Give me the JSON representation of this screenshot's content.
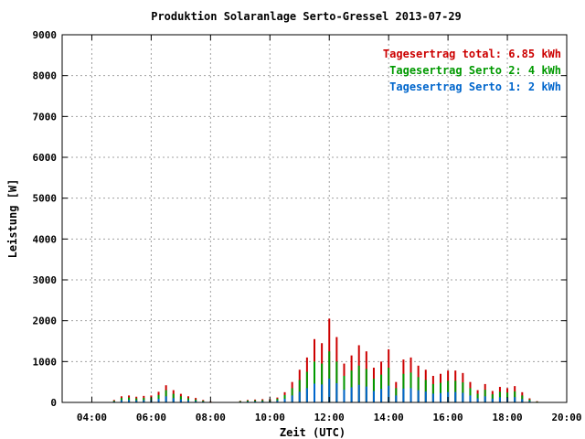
{
  "chart_data": {
    "type": "bar",
    "title": "Produktion Solaranlage Serto-Gressel 2013-07-29",
    "xlabel": "Zeit (UTC)",
    "ylabel": "Leistung [W]",
    "xlim": [
      3.0,
      20.0
    ],
    "ylim": [
      0,
      9000
    ],
    "grid": true,
    "legend_position": "top-right",
    "x_ticks": [
      {
        "v": 4,
        "label": "04:00"
      },
      {
        "v": 6,
        "label": "06:00"
      },
      {
        "v": 8,
        "label": "08:00"
      },
      {
        "v": 10,
        "label": "10:00"
      },
      {
        "v": 12,
        "label": "12:00"
      },
      {
        "v": 14,
        "label": "14:00"
      },
      {
        "v": 16,
        "label": "16:00"
      },
      {
        "v": 18,
        "label": "18:00"
      },
      {
        "v": 20,
        "label": "20:00"
      }
    ],
    "y_ticks": [
      {
        "v": 0,
        "label": "0"
      },
      {
        "v": 1000,
        "label": "1000"
      },
      {
        "v": 2000,
        "label": "2000"
      },
      {
        "v": 3000,
        "label": "3000"
      },
      {
        "v": 4000,
        "label": "4000"
      },
      {
        "v": 5000,
        "label": "5000"
      },
      {
        "v": 6000,
        "label": "6000"
      },
      {
        "v": 7000,
        "label": "7000"
      },
      {
        "v": 8000,
        "label": "8000"
      },
      {
        "v": 9000,
        "label": "9000"
      }
    ],
    "legend": [
      {
        "label": "Tagesertrag total: 6.85 kWh",
        "color": "#cc0000"
      },
      {
        "label": "Tagesertrag Serto 2: 4 kWh",
        "color": "#009900"
      },
      {
        "label": "Tagesertrag Serto 1: 2 kWh",
        "color": "#0066cc"
      }
    ],
    "series": [
      {
        "name": "Tagesertrag total: 6.85 kWh",
        "color": "#cc0000",
        "points": [
          [
            4.75,
            60
          ],
          [
            5.0,
            150
          ],
          [
            5.25,
            170
          ],
          [
            5.5,
            140
          ],
          [
            5.75,
            160
          ],
          [
            6.0,
            170
          ],
          [
            6.25,
            260
          ],
          [
            6.5,
            420
          ],
          [
            6.75,
            300
          ],
          [
            7.0,
            210
          ],
          [
            7.25,
            150
          ],
          [
            7.5,
            110
          ],
          [
            7.75,
            60
          ],
          [
            8.0,
            25
          ],
          [
            8.25,
            10
          ],
          [
            9.0,
            40
          ],
          [
            9.25,
            60
          ],
          [
            9.5,
            70
          ],
          [
            9.75,
            80
          ],
          [
            10.0,
            80
          ],
          [
            10.25,
            120
          ],
          [
            10.5,
            250
          ],
          [
            10.75,
            500
          ],
          [
            11.0,
            800
          ],
          [
            11.25,
            1100
          ],
          [
            11.5,
            1550
          ],
          [
            11.75,
            1450
          ],
          [
            12.0,
            2050
          ],
          [
            12.25,
            1600
          ],
          [
            12.5,
            950
          ],
          [
            12.75,
            1150
          ],
          [
            13.0,
            1400
          ],
          [
            13.25,
            1250
          ],
          [
            13.5,
            850
          ],
          [
            13.75,
            1000
          ],
          [
            14.0,
            1300
          ],
          [
            14.25,
            500
          ],
          [
            14.5,
            1050
          ],
          [
            14.75,
            1100
          ],
          [
            15.0,
            900
          ],
          [
            15.25,
            800
          ],
          [
            15.5,
            650
          ],
          [
            15.75,
            700
          ],
          [
            16.0,
            780
          ],
          [
            16.25,
            780
          ],
          [
            16.5,
            720
          ],
          [
            16.75,
            500
          ],
          [
            17.0,
            300
          ],
          [
            17.25,
            450
          ],
          [
            17.5,
            280
          ],
          [
            17.75,
            380
          ],
          [
            18.0,
            350
          ],
          [
            18.25,
            400
          ],
          [
            18.5,
            250
          ],
          [
            18.75,
            100
          ],
          [
            19.0,
            30
          ]
        ]
      },
      {
        "name": "Tagesertrag Serto 2: 4 kWh",
        "color": "#009900",
        "points": [
          [
            4.75,
            40
          ],
          [
            5.0,
            110
          ],
          [
            5.25,
            120
          ],
          [
            5.5,
            100
          ],
          [
            5.75,
            110
          ],
          [
            6.0,
            120
          ],
          [
            6.25,
            180
          ],
          [
            6.5,
            300
          ],
          [
            6.75,
            210
          ],
          [
            7.0,
            150
          ],
          [
            7.25,
            100
          ],
          [
            7.5,
            70
          ],
          [
            7.75,
            40
          ],
          [
            8.0,
            15
          ],
          [
            8.25,
            5
          ],
          [
            9.0,
            30
          ],
          [
            9.25,
            45
          ],
          [
            9.5,
            50
          ],
          [
            9.75,
            55
          ],
          [
            10.0,
            55
          ],
          [
            10.25,
            90
          ],
          [
            10.5,
            180
          ],
          [
            10.75,
            350
          ],
          [
            11.0,
            550
          ],
          [
            11.25,
            750
          ],
          [
            11.5,
            1000
          ],
          [
            11.75,
            950
          ],
          [
            12.0,
            1250
          ],
          [
            12.25,
            1000
          ],
          [
            12.5,
            650
          ],
          [
            12.75,
            780
          ],
          [
            13.0,
            900
          ],
          [
            13.25,
            820
          ],
          [
            13.5,
            580
          ],
          [
            13.75,
            680
          ],
          [
            14.0,
            850
          ],
          [
            14.25,
            350
          ],
          [
            14.5,
            700
          ],
          [
            14.75,
            730
          ],
          [
            15.0,
            620
          ],
          [
            15.25,
            550
          ],
          [
            15.5,
            450
          ],
          [
            15.75,
            480
          ],
          [
            16.0,
            530
          ],
          [
            16.25,
            530
          ],
          [
            16.5,
            490
          ],
          [
            16.75,
            350
          ],
          [
            17.0,
            210
          ],
          [
            17.25,
            310
          ],
          [
            17.5,
            200
          ],
          [
            17.75,
            260
          ],
          [
            18.0,
            240
          ],
          [
            18.25,
            270
          ],
          [
            18.5,
            170
          ],
          [
            18.75,
            70
          ],
          [
            19.0,
            20
          ]
        ]
      },
      {
        "name": "Tagesertrag Serto 1: 2 kWh",
        "color": "#0066cc",
        "points": [
          [
            4.75,
            20
          ],
          [
            5.0,
            55
          ],
          [
            5.25,
            60
          ],
          [
            5.5,
            50
          ],
          [
            5.75,
            55
          ],
          [
            6.0,
            60
          ],
          [
            6.25,
            90
          ],
          [
            6.5,
            150
          ],
          [
            6.75,
            105
          ],
          [
            7.0,
            75
          ],
          [
            7.25,
            50
          ],
          [
            7.5,
            35
          ],
          [
            7.75,
            20
          ],
          [
            8.0,
            8
          ],
          [
            8.25,
            3
          ],
          [
            9.0,
            15
          ],
          [
            9.25,
            22
          ],
          [
            9.5,
            25
          ],
          [
            9.75,
            28
          ],
          [
            10.0,
            28
          ],
          [
            10.25,
            45
          ],
          [
            10.5,
            90
          ],
          [
            10.75,
            170
          ],
          [
            11.0,
            260
          ],
          [
            11.25,
            350
          ],
          [
            11.5,
            460
          ],
          [
            11.75,
            440
          ],
          [
            12.0,
            580
          ],
          [
            12.25,
            470
          ],
          [
            12.5,
            310
          ],
          [
            12.75,
            370
          ],
          [
            13.0,
            430
          ],
          [
            13.25,
            390
          ],
          [
            13.5,
            280
          ],
          [
            13.75,
            330
          ],
          [
            14.0,
            410
          ],
          [
            14.25,
            170
          ],
          [
            14.5,
            340
          ],
          [
            14.75,
            350
          ],
          [
            15.0,
            300
          ],
          [
            15.25,
            265
          ],
          [
            15.5,
            215
          ],
          [
            15.75,
            230
          ],
          [
            16.0,
            255
          ],
          [
            16.25,
            255
          ],
          [
            16.5,
            235
          ],
          [
            16.75,
            170
          ],
          [
            17.0,
            100
          ],
          [
            17.25,
            150
          ],
          [
            17.5,
            95
          ],
          [
            17.75,
            125
          ],
          [
            18.0,
            115
          ],
          [
            18.25,
            130
          ],
          [
            18.5,
            80
          ],
          [
            18.75,
            35
          ],
          [
            19.0,
            10
          ]
        ]
      }
    ]
  }
}
